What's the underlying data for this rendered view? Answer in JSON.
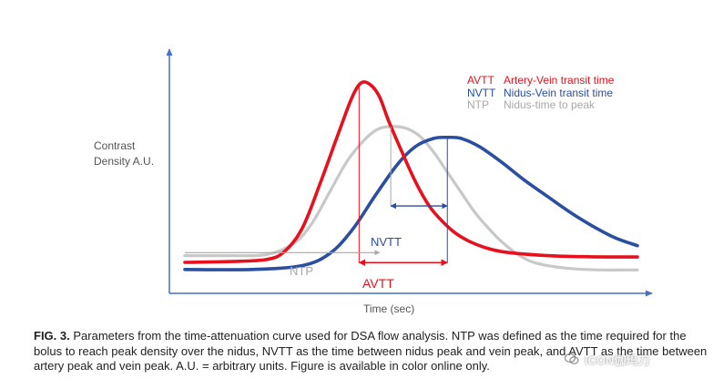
{
  "chart_data": {
    "type": "line",
    "xlabel": "Time (sec)",
    "ylabel_lines": [
      "Contrast",
      "Density A.U."
    ],
    "xlim": [
      0,
      100
    ],
    "ylim": [
      0,
      100
    ],
    "grid": false,
    "legend_position": "top-right",
    "legend": [
      {
        "abbr": "AVTT",
        "text": "Artery-Vein transit time",
        "color": "#e8101c"
      },
      {
        "abbr": "NVTT",
        "text": "Nidus-Vein transit time",
        "color": "#2b4ea0"
      },
      {
        "abbr": "NTP",
        "text": "Nidus-time to peak",
        "color": "#a8a8a8"
      }
    ],
    "series": [
      {
        "name": "Artery",
        "color": "#e8101c",
        "points": [
          [
            0,
            4.6
          ],
          [
            10,
            5
          ],
          [
            18,
            6
          ],
          [
            22,
            10
          ],
          [
            26,
            22
          ],
          [
            30,
            45
          ],
          [
            34,
            70
          ],
          [
            37,
            88
          ],
          [
            39,
            95
          ],
          [
            41,
            94
          ],
          [
            43,
            88
          ],
          [
            45,
            76
          ],
          [
            48,
            60
          ],
          [
            51,
            45
          ],
          [
            54,
            33
          ],
          [
            57,
            25
          ],
          [
            60,
            19
          ],
          [
            64,
            14
          ],
          [
            70,
            10
          ],
          [
            80,
            8
          ],
          [
            90,
            7.4
          ],
          [
            100,
            7.3
          ]
        ]
      },
      {
        "name": "Nidus",
        "color": "#c8c8c8",
        "points": [
          [
            0,
            8
          ],
          [
            10,
            8
          ],
          [
            18,
            8.5
          ],
          [
            24,
            14
          ],
          [
            28,
            24
          ],
          [
            32,
            40
          ],
          [
            36,
            56
          ],
          [
            40,
            67
          ],
          [
            43,
            72
          ],
          [
            46,
            73
          ],
          [
            49,
            72
          ],
          [
            52,
            68
          ],
          [
            55,
            60
          ],
          [
            58,
            50
          ],
          [
            61,
            40
          ],
          [
            64,
            30
          ],
          [
            67,
            22
          ],
          [
            70,
            15
          ],
          [
            74,
            8
          ],
          [
            78,
            4
          ],
          [
            85,
            1.5
          ],
          [
            92,
            0.8
          ],
          [
            100,
            0.8
          ]
        ]
      },
      {
        "name": "Vein",
        "color": "#2b4ea0",
        "points": [
          [
            0,
            1
          ],
          [
            15,
            1
          ],
          [
            26,
            3
          ],
          [
            32,
            9
          ],
          [
            37,
            21
          ],
          [
            42,
            38
          ],
          [
            47,
            54
          ],
          [
            51,
            63
          ],
          [
            55,
            67
          ],
          [
            58,
            67.5
          ],
          [
            61,
            67
          ],
          [
            65,
            63
          ],
          [
            70,
            55
          ],
          [
            75,
            46
          ],
          [
            80,
            38
          ],
          [
            85,
            30
          ],
          [
            90,
            23
          ],
          [
            95,
            17
          ],
          [
            100,
            13
          ]
        ]
      }
    ],
    "annotations": {
      "ntp": {
        "label": "NTP",
        "x_from": 0,
        "x_to": 43,
        "y": 9.5,
        "color": "#a8a8a8"
      },
      "avtt": {
        "label": "AVTT",
        "x_from": 38.5,
        "x_to": 58,
        "y": 4.5,
        "color": "#e8101c"
      },
      "nvtt": {
        "label": "NVTT",
        "x_from": 45.5,
        "x_to": 58,
        "y": 33,
        "color": "#2b4ea0"
      },
      "vlines": [
        {
          "x": 38.5,
          "y_top": 95,
          "y_bottom": 4.5,
          "color": "#e8101c"
        },
        {
          "x": 45.5,
          "y_top": 73,
          "y_bottom": 33,
          "color": "#a8a8a8"
        },
        {
          "x": 58,
          "y_top": 67.5,
          "y_bottom": 4.5,
          "color": "#2b4ea0"
        }
      ]
    }
  },
  "caption": {
    "label": "FIG. 3.",
    "text": "Parameters from the time-attenuation curve used for DSA flow analysis. NTP was defined as the time required for the bolus to reach peak density over the nidus, NVTT as the time between nidus peak and vein peak, and AVTT as the time between artery peak and vein peak. A.U. = arbitrary units. Figure is available in color online only."
  },
  "watermark": {
    "text": "ICON伽玛刀",
    "icon": "wechat-icon"
  }
}
